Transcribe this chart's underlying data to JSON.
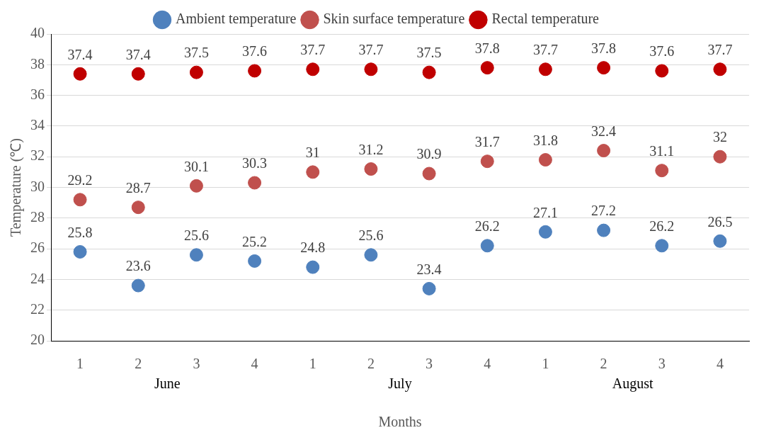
{
  "chart_data": {
    "type": "scatter",
    "xlabel": "Months",
    "ylabel": "Temperature (℃)",
    "categories": [
      "1",
      "2",
      "3",
      "4",
      "1",
      "2",
      "3",
      "4",
      "1",
      "2",
      "3",
      "4"
    ],
    "series": [
      {
        "name": "Ambient temperature",
        "color": "#4f81bd",
        "values": [
          25.8,
          23.6,
          25.6,
          25.2,
          24.8,
          25.6,
          23.4,
          26.2,
          27.1,
          27.2,
          26.2,
          26.5
        ]
      },
      {
        "name": "Skin surface temperature",
        "color": "#c0504d",
        "values": [
          29.2,
          28.7,
          30.1,
          30.3,
          31,
          31.2,
          30.9,
          31.7,
          31.8,
          32.4,
          31.1,
          32
        ]
      },
      {
        "name": "Rectal temperature",
        "color": "#c00000",
        "values": [
          37.4,
          37.4,
          37.5,
          37.6,
          37.7,
          37.7,
          37.5,
          37.8,
          37.7,
          37.8,
          37.6,
          37.7
        ]
      }
    ],
    "ylim": [
      20,
      40
    ],
    "yticks": [
      20,
      22,
      24,
      26,
      28,
      30,
      32,
      34,
      36,
      38,
      40
    ],
    "annotations": [
      "June",
      "July",
      "August"
    ],
    "grid": "y",
    "legend": "top",
    "marker": "circle",
    "data_labels": true
  }
}
